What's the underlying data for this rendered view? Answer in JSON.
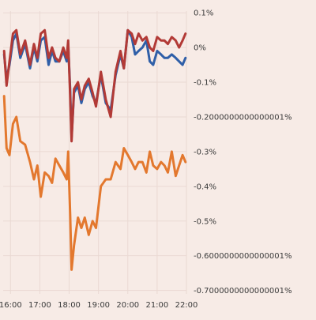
{
  "chart_data": {
    "type": "line",
    "x_ticks": [
      "16:00",
      "17:00",
      "18:00",
      "19:00",
      "20:00",
      "21:00",
      "22:00"
    ],
    "xlim": [
      "15:45",
      "22:00"
    ],
    "ylim": [
      -0.71,
      0.105
    ],
    "y_ticks": [
      {
        "value": 0.1,
        "label": "0.1%"
      },
      {
        "value": 0.0,
        "label": "0%"
      },
      {
        "value": -0.1,
        "label": "-0.1%"
      },
      {
        "value": -0.2,
        "label": "-0.2000000000000001%"
      },
      {
        "value": -0.3,
        "label": "-0.3%"
      },
      {
        "value": -0.4,
        "label": "-0.4%"
      },
      {
        "value": -0.5,
        "label": "-0.5%"
      },
      {
        "value": -0.6,
        "label": "-0.6000000000000001%"
      },
      {
        "value": -0.7,
        "label": "-0.7000000000000001%"
      }
    ],
    "grid": true,
    "series": [
      {
        "color": "#2f5fa8",
        "x": [
          "15:47",
          "15:52",
          "15:58",
          "16:05",
          "16:12",
          "16:20",
          "16:30",
          "16:40",
          "16:48",
          "16:55",
          "17:02",
          "17:10",
          "17:18",
          "17:25",
          "17:32",
          "17:40",
          "17:48",
          "17:55",
          "17:58",
          "18:02",
          "18:05",
          "18:10",
          "18:18",
          "18:25",
          "18:32",
          "18:40",
          "18:48",
          "18:55",
          "19:05",
          "19:15",
          "19:25",
          "19:35",
          "19:45",
          "19:52",
          "20:00",
          "20:08",
          "20:15",
          "20:22",
          "20:30",
          "20:38",
          "20:45",
          "20:52",
          "21:00",
          "21:08",
          "21:15",
          "21:22",
          "21:30",
          "21:38",
          "21:45",
          "21:52",
          "21:58"
        ],
        "y": [
          -0.02,
          -0.09,
          -0.05,
          0.02,
          0.04,
          -0.03,
          0.01,
          -0.06,
          0.0,
          -0.04,
          0.02,
          0.03,
          -0.05,
          -0.01,
          -0.04,
          -0.04,
          -0.01,
          -0.04,
          0.01,
          -0.12,
          -0.26,
          -0.13,
          -0.11,
          -0.16,
          -0.12,
          -0.1,
          -0.14,
          -0.16,
          -0.08,
          -0.16,
          -0.18,
          -0.08,
          -0.02,
          -0.06,
          0.05,
          0.03,
          -0.02,
          -0.01,
          0.0,
          0.02,
          -0.04,
          -0.05,
          -0.01,
          -0.02,
          -0.03,
          -0.03,
          -0.02,
          -0.03,
          -0.04,
          -0.05,
          -0.03
        ]
      },
      {
        "color": "#b23a36",
        "x": [
          "15:47",
          "15:52",
          "15:58",
          "16:05",
          "16:12",
          "16:20",
          "16:30",
          "16:40",
          "16:48",
          "16:55",
          "17:02",
          "17:10",
          "17:18",
          "17:25",
          "17:32",
          "17:40",
          "17:48",
          "17:55",
          "17:58",
          "18:02",
          "18:05",
          "18:10",
          "18:18",
          "18:25",
          "18:32",
          "18:40",
          "18:48",
          "18:55",
          "19:05",
          "19:15",
          "19:25",
          "19:35",
          "19:45",
          "19:52",
          "20:00",
          "20:08",
          "20:15",
          "20:22",
          "20:30",
          "20:38",
          "20:45",
          "20:52",
          "21:00",
          "21:08",
          "21:15",
          "21:22",
          "21:30",
          "21:38",
          "21:45",
          "21:52",
          "21:58"
        ],
        "y": [
          -0.01,
          -0.11,
          -0.04,
          0.04,
          0.05,
          -0.02,
          0.02,
          -0.05,
          0.01,
          -0.03,
          0.04,
          0.05,
          -0.03,
          0.0,
          -0.03,
          -0.04,
          0.0,
          -0.03,
          0.02,
          -0.14,
          -0.27,
          -0.12,
          -0.1,
          -0.15,
          -0.11,
          -0.09,
          -0.13,
          -0.17,
          -0.07,
          -0.15,
          -0.2,
          -0.07,
          -0.01,
          -0.06,
          0.05,
          0.04,
          0.01,
          0.04,
          0.02,
          0.03,
          0.0,
          -0.01,
          0.03,
          0.02,
          0.02,
          0.01,
          0.03,
          0.02,
          0.0,
          0.02,
          0.04
        ]
      },
      {
        "color": "#e3782e",
        "x": [
          "15:47",
          "15:52",
          "15:58",
          "16:05",
          "16:12",
          "16:20",
          "16:30",
          "16:40",
          "16:48",
          "16:55",
          "17:02",
          "17:10",
          "17:18",
          "17:25",
          "17:32",
          "17:40",
          "17:48",
          "17:55",
          "17:58",
          "18:02",
          "18:05",
          "18:10",
          "18:18",
          "18:25",
          "18:32",
          "18:40",
          "18:48",
          "18:55",
          "19:05",
          "19:15",
          "19:25",
          "19:35",
          "19:45",
          "19:52",
          "20:00",
          "20:08",
          "20:15",
          "20:22",
          "20:30",
          "20:38",
          "20:45",
          "20:52",
          "21:00",
          "21:08",
          "21:15",
          "21:22",
          "21:30",
          "21:38",
          "21:45",
          "21:52",
          "21:58"
        ],
        "y": [
          -0.14,
          -0.29,
          -0.31,
          -0.22,
          -0.2,
          -0.27,
          -0.28,
          -0.33,
          -0.38,
          -0.34,
          -0.43,
          -0.36,
          -0.37,
          -0.39,
          -0.32,
          -0.34,
          -0.36,
          -0.38,
          -0.3,
          -0.48,
          -0.64,
          -0.57,
          -0.49,
          -0.52,
          -0.49,
          -0.54,
          -0.5,
          -0.52,
          -0.4,
          -0.38,
          -0.38,
          -0.33,
          -0.35,
          -0.29,
          -0.31,
          -0.33,
          -0.35,
          -0.33,
          -0.33,
          -0.36,
          -0.3,
          -0.34,
          -0.35,
          -0.33,
          -0.34,
          -0.36,
          -0.3,
          -0.37,
          -0.34,
          -0.31,
          -0.33
        ]
      }
    ]
  }
}
